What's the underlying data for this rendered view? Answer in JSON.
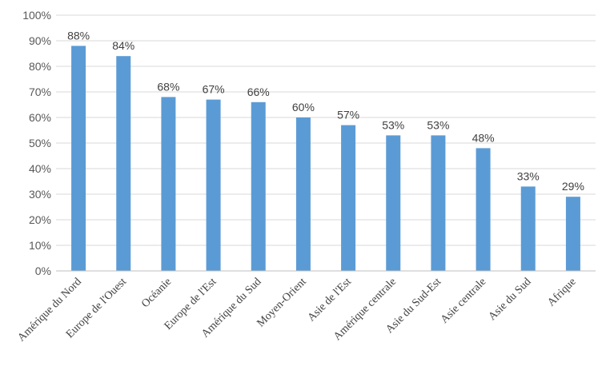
{
  "chart_data": {
    "type": "bar",
    "title": "",
    "xlabel": "",
    "ylabel": "",
    "categories": [
      "Amérique du Nord",
      "Europe de l'Ouest",
      "Océanie",
      "Europe de l'Est",
      "Amérique du Sud",
      "Moyen-Orient",
      "Asie de l'Est",
      "Amérique centrale",
      "Asie du Sud-Est",
      "Asie centrale",
      "Asie du Sud",
      "Afrique"
    ],
    "values": [
      88,
      84,
      68,
      67,
      66,
      60,
      57,
      53,
      53,
      48,
      33,
      29
    ],
    "data_labels": [
      "88%",
      "84%",
      "68%",
      "67%",
      "66%",
      "60%",
      "57%",
      "53%",
      "53%",
      "48%",
      "33%",
      "29%"
    ],
    "y_ticks": [
      "0%",
      "10%",
      "20%",
      "30%",
      "40%",
      "50%",
      "60%",
      "70%",
      "80%",
      "90%",
      "100%"
    ],
    "ylim": [
      0,
      100
    ],
    "grid": true,
    "legend": "none",
    "bar_color": "#5b9bd5"
  }
}
